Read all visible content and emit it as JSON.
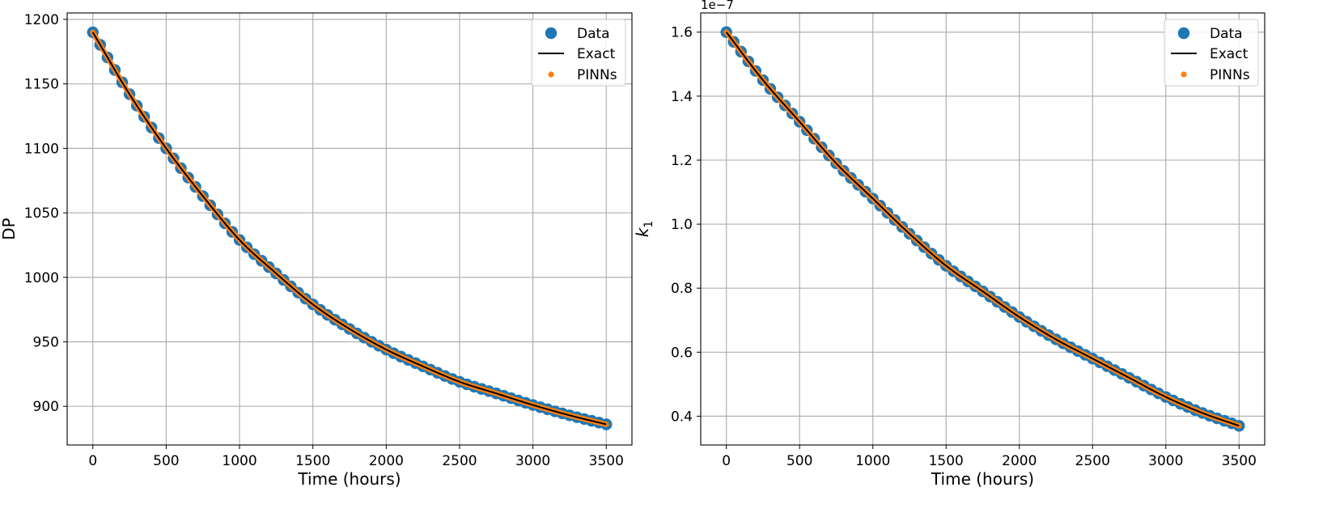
{
  "chart_data": [
    {
      "type": "scatter",
      "xlabel": "Time (hours)",
      "ylabel": "DP",
      "offset_label": "",
      "xlim": [
        -175,
        3675
      ],
      "ylim": [
        870,
        1205
      ],
      "xticks": [
        0,
        500,
        1000,
        1500,
        2000,
        2500,
        3000,
        3500
      ],
      "xtick_labels": [
        "0",
        "500",
        "1000",
        "1500",
        "2000",
        "2500",
        "3000",
        "3500"
      ],
      "yticks": [
        900,
        950,
        1000,
        1050,
        1100,
        1150,
        1200
      ],
      "ytick_labels": [
        "900",
        "950",
        "1000",
        "1050",
        "1100",
        "1150",
        "1200"
      ],
      "grid": true,
      "legend": {
        "placement": "top-right",
        "entries": [
          "Data",
          "Exact",
          "PINNs"
        ]
      },
      "series": [
        {
          "name": "Data",
          "kind": "scatter-large",
          "color": "#1f77b4",
          "x_start": 0,
          "x_end": 3500,
          "n_points": 71
        },
        {
          "name": "Exact",
          "kind": "line",
          "color": "#000000"
        },
        {
          "name": "PINNs",
          "kind": "scatter-small",
          "color": "#ff7f0e",
          "x_start": 0,
          "x_end": 3500,
          "n_points": 351
        }
      ],
      "curve": [
        {
          "x": 0,
          "y": 1190
        },
        {
          "x": 250,
          "y": 1142
        },
        {
          "x": 500,
          "y": 1100
        },
        {
          "x": 750,
          "y": 1063
        },
        {
          "x": 1000,
          "y": 1029
        },
        {
          "x": 1250,
          "y": 1003
        },
        {
          "x": 1500,
          "y": 979
        },
        {
          "x": 1750,
          "y": 960
        },
        {
          "x": 2000,
          "y": 944
        },
        {
          "x": 2250,
          "y": 931
        },
        {
          "x": 2500,
          "y": 919
        },
        {
          "x": 2750,
          "y": 910
        },
        {
          "x": 3000,
          "y": 901
        },
        {
          "x": 3250,
          "y": 893
        },
        {
          "x": 3500,
          "y": 886
        }
      ]
    },
    {
      "type": "scatter",
      "xlabel": "Time (hours)",
      "ylabel": "k",
      "ylabel_subscript": "1",
      "offset_label": "1e−7",
      "xlim": [
        -175,
        3675
      ],
      "ylim": [
        0.31,
        1.66
      ],
      "xticks": [
        0,
        500,
        1000,
        1500,
        2000,
        2500,
        3000,
        3500
      ],
      "xtick_labels": [
        "0",
        "500",
        "1000",
        "1500",
        "2000",
        "2500",
        "3000",
        "3500"
      ],
      "yticks": [
        0.4,
        0.6,
        0.8,
        1.0,
        1.2,
        1.4,
        1.6
      ],
      "ytick_labels": [
        "0.4",
        "0.6",
        "0.8",
        "1.0",
        "1.2",
        "1.4",
        "1.6"
      ],
      "grid": true,
      "legend": {
        "placement": "top-right",
        "entries": [
          "Data",
          "Exact",
          "PINNs"
        ]
      },
      "series": [
        {
          "name": "Data",
          "kind": "scatter-large",
          "color": "#1f77b4",
          "x_start": 0,
          "x_end": 3500,
          "n_points": 71
        },
        {
          "name": "Exact",
          "kind": "line",
          "color": "#000000"
        },
        {
          "name": "PINNs",
          "kind": "scatter-small",
          "color": "#ff7f0e",
          "x_start": 0,
          "x_end": 3500,
          "n_points": 351
        }
      ],
      "curve": [
        {
          "x": 0,
          "y": 1.6
        },
        {
          "x": 250,
          "y": 1.45
        },
        {
          "x": 500,
          "y": 1.32
        },
        {
          "x": 750,
          "y": 1.19
        },
        {
          "x": 1000,
          "y": 1.08
        },
        {
          "x": 1250,
          "y": 0.97
        },
        {
          "x": 1500,
          "y": 0.87
        },
        {
          "x": 1750,
          "y": 0.79
        },
        {
          "x": 2000,
          "y": 0.71
        },
        {
          "x": 2250,
          "y": 0.64
        },
        {
          "x": 2500,
          "y": 0.58
        },
        {
          "x": 2750,
          "y": 0.52
        },
        {
          "x": 3000,
          "y": 0.46
        },
        {
          "x": 3250,
          "y": 0.41
        },
        {
          "x": 3500,
          "y": 0.37
        }
      ]
    }
  ]
}
